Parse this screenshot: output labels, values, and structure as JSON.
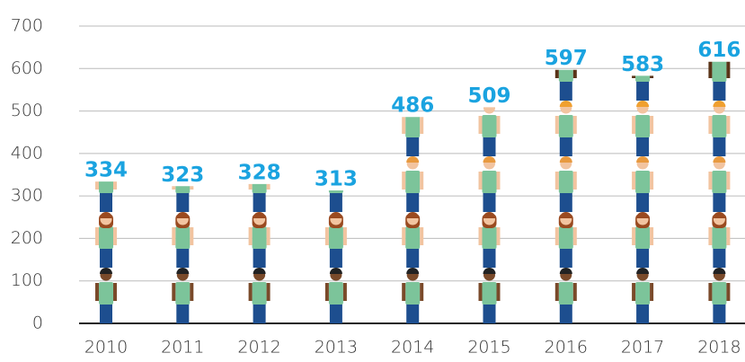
{
  "chart_data": {
    "type": "pictogram",
    "categories": [
      "2010",
      "2011",
      "2012",
      "2013",
      "2014",
      "2015",
      "2016",
      "2017",
      "2018"
    ],
    "values": [
      334,
      323,
      328,
      313,
      486,
      509,
      597,
      583,
      616
    ],
    "color": "#1aa3e0",
    "ylim": [
      0,
      700
    ],
    "yticks": [
      0,
      100,
      200,
      300,
      400,
      500,
      600,
      700
    ],
    "grid": true
  }
}
